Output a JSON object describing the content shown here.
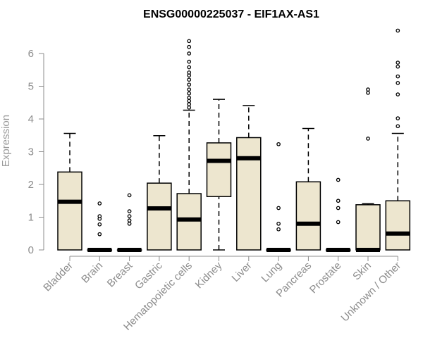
{
  "chart_data": {
    "type": "boxplot",
    "title": "ENSG00000225037 - EIF1AX-AS1",
    "xlabel": "",
    "ylabel": "Expression",
    "ylim": [
      0,
      6.8
    ],
    "yticks": [
      0,
      1,
      2,
      3,
      4,
      5,
      6
    ],
    "box_color": "#ede6cf",
    "grid": false,
    "categories": [
      "Bladder",
      "Brain",
      "Breast",
      "Gastric",
      "Hematopoietic cells",
      "Kidney",
      "Liver",
      "Lung",
      "Pancreas",
      "Prostate",
      "Skin",
      "Unknown / Other"
    ],
    "boxes": [
      {
        "min": 0,
        "q1": 0,
        "median": 1.47,
        "q3": 2.38,
        "max": 3.56,
        "outliers": []
      },
      {
        "min": 0,
        "q1": 0,
        "median": 0,
        "q3": 0,
        "max": 0,
        "outliers": [
          0.48,
          0.78,
          0.95,
          1.03,
          1.42
        ]
      },
      {
        "min": 0,
        "q1": 0,
        "median": 0,
        "q3": 0,
        "max": 0,
        "outliers": [
          0.8,
          0.9,
          1.03,
          1.18,
          1.67
        ]
      },
      {
        "min": 0,
        "q1": 0,
        "median": 1.27,
        "q3": 2.04,
        "max": 3.49,
        "outliers": []
      },
      {
        "min": 0,
        "q1": 0,
        "median": 0.93,
        "q3": 1.72,
        "max": 4.27,
        "outliers": [
          4.35,
          4.45,
          4.55,
          4.65,
          4.78,
          4.9,
          5.05,
          5.2,
          5.33,
          5.42,
          5.58,
          5.75,
          6.0,
          6.2,
          6.38
        ]
      },
      {
        "min": 0,
        "q1": 1.63,
        "median": 2.72,
        "q3": 3.27,
        "max": 4.6,
        "outliers": []
      },
      {
        "min": 0,
        "q1": 0,
        "median": 2.8,
        "q3": 3.43,
        "max": 4.41,
        "outliers": []
      },
      {
        "min": 0,
        "q1": 0,
        "median": 0,
        "q3": 0,
        "max": 0,
        "outliers": [
          0.63,
          0.8,
          1.28,
          3.23
        ]
      },
      {
        "min": 0,
        "q1": 0,
        "median": 0.8,
        "q3": 2.08,
        "max": 3.71,
        "outliers": []
      },
      {
        "min": 0,
        "q1": 0,
        "median": 0,
        "q3": 0,
        "max": 0,
        "outliers": [
          0.85,
          1.28,
          1.5,
          2.14
        ]
      },
      {
        "min": 0,
        "q1": 0,
        "median": 0,
        "q3": 1.38,
        "max": 1.41,
        "outliers": [
          3.4,
          4.8,
          4.9
        ]
      },
      {
        "min": 0,
        "q1": 0,
        "median": 0.5,
        "q3": 1.5,
        "max": 3.56,
        "outliers": [
          3.78,
          4.02,
          4.75,
          5.1,
          5.3,
          5.6,
          5.72,
          6.7
        ]
      }
    ]
  }
}
